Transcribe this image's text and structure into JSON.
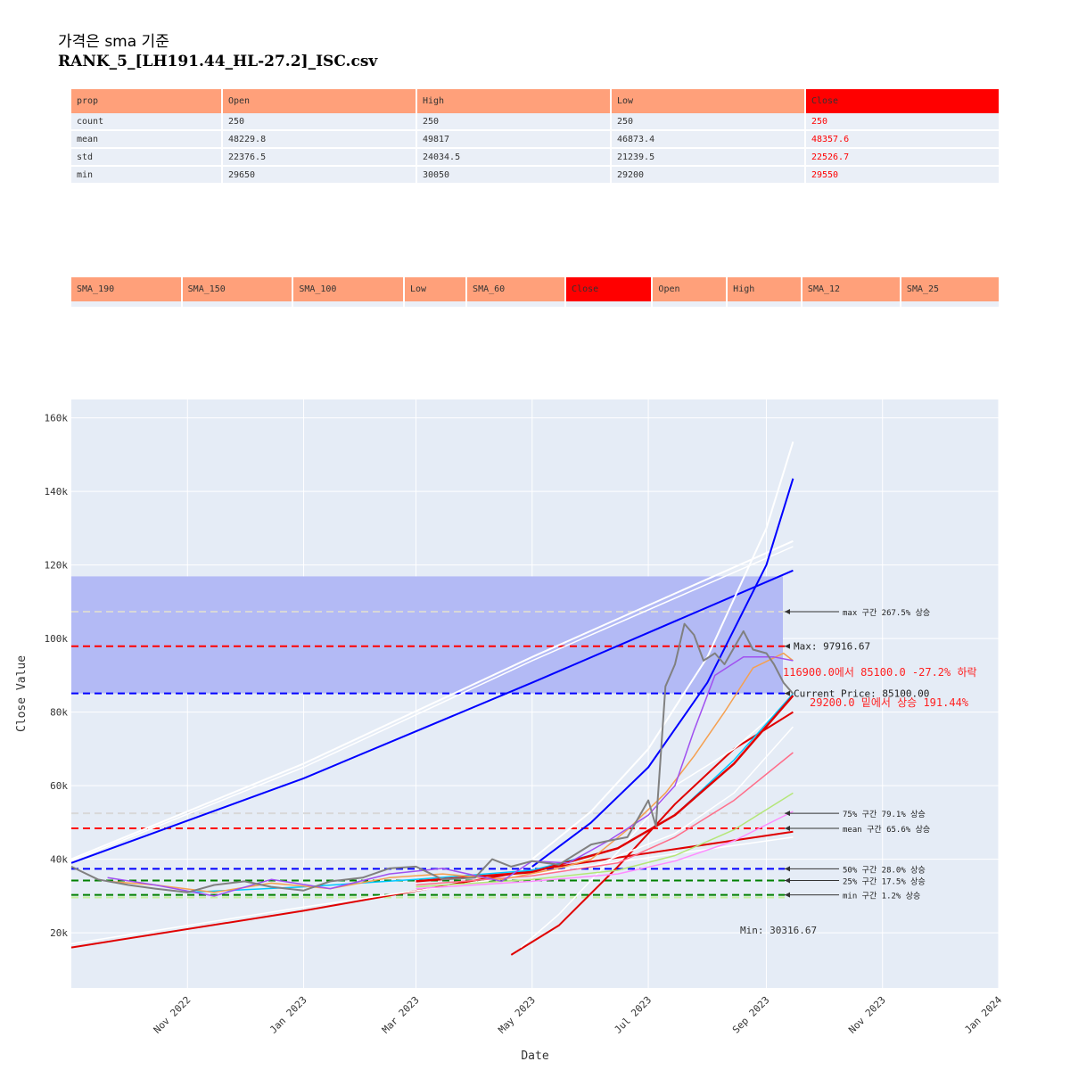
{
  "title": {
    "line1": "가격은 sma 기준",
    "line2": "RANK_5_[LH191.44_HL-27.2]_ISC.csv"
  },
  "stats_table": {
    "headers": [
      "prop",
      "Open",
      "High",
      "Low",
      "Close"
    ],
    "rows": [
      [
        "count",
        "250",
        "250",
        "250",
        "250"
      ],
      [
        "mean",
        "48229.8",
        "49817",
        "46873.4",
        "48357.6"
      ],
      [
        "std",
        "22376.5",
        "24034.5",
        "21239.5",
        "22526.7"
      ],
      [
        "min",
        "29650",
        "30050",
        "29200",
        "29550"
      ]
    ]
  },
  "sma_table": {
    "headers": [
      "SMA_190",
      "SMA_150",
      "SMA_100",
      "Low",
      "SMA_60",
      "Close",
      "Open",
      "High",
      "SMA_12",
      "SMA_25"
    ]
  },
  "colors": {
    "header": "#ffa07a",
    "close_header": "#ff0000",
    "plot_bg": "#e5ecf6",
    "band": "#b3baf5"
  },
  "chart_data": {
    "type": "line",
    "xlabel": "Date",
    "ylabel": "Close Value",
    "x_range": [
      "2022-09-01",
      "2024-01-01"
    ],
    "ylim": [
      5000,
      165000
    ],
    "x_ticks": [
      "Nov 2022",
      "Jan 2023",
      "Mar 2023",
      "May 2023",
      "Jul 2023",
      "Sep 2023",
      "Nov 2023",
      "Jan 2024"
    ],
    "y_ticks": [
      "20k",
      "40k",
      "60k",
      "80k",
      "100k",
      "120k",
      "140k",
      "160k"
    ],
    "y_tick_values": [
      20000,
      40000,
      60000,
      80000,
      100000,
      120000,
      140000,
      160000
    ],
    "band": [
      85100,
      116900
    ],
    "hlines": [
      {
        "y": 107300,
        "color": "#d8d8d8"
      },
      {
        "y": 97916.67,
        "color": "#ff0000"
      },
      {
        "y": 85100,
        "color": "#0000ff"
      },
      {
        "y": 52500,
        "color": "#d8d8d8"
      },
      {
        "y": 48400,
        "color": "#ff0000"
      },
      {
        "y": 37400,
        "color": "#0000ff"
      },
      {
        "y": 34200,
        "color": "#008000"
      },
      {
        "y": 30300,
        "color": "#008000"
      },
      {
        "y": 29600,
        "color": "#c8f0a0"
      }
    ],
    "annotations": [
      {
        "text": "max 구간 267.5% 상승",
        "y": 107300
      },
      {
        "text": "Max: 97916.67",
        "y": 97916.67
      },
      {
        "text": "Current Price: 85100.00",
        "y": 85100
      },
      {
        "text": "75% 구간 79.1% 상승",
        "y": 52500
      },
      {
        "text": "mean 구간 65.6% 상승",
        "y": 48400
      },
      {
        "text": "50% 구간 28.0% 상승",
        "y": 37400
      },
      {
        "text": "25% 구간 17.5% 상승",
        "y": 34200
      },
      {
        "text": "min 구간 1.2% 상승",
        "y": 30300
      }
    ],
    "red_notes": [
      "116900.0에서 85100.0 -27.2% 하락",
      "29200.0 밑에서 상승 191.44%"
    ],
    "min_label": "Min: 30316.67",
    "series": [
      {
        "color": "#0000ff",
        "width": 2,
        "x": [
          "2022-09-01",
          "2023-01-01",
          "2023-05-01",
          "2023-09-15"
        ],
        "y": [
          39000,
          62000,
          88000,
          118500
        ]
      },
      {
        "color": "#ffffff",
        "width": 2,
        "x": [
          "2022-09-01",
          "2023-01-01",
          "2023-05-01",
          "2023-09-15"
        ],
        "y": [
          40000,
          66000,
          95000,
          126500
        ]
      },
      {
        "color": "#ffffff",
        "width": 1.5,
        "x": [
          "2022-09-01",
          "2023-01-01",
          "2023-05-01",
          "2023-09-15"
        ],
        "y": [
          39500,
          65000,
          94000,
          125000
        ]
      },
      {
        "color": "#e00000",
        "width": 2,
        "x": [
          "2022-09-01",
          "2023-01-01",
          "2023-05-01",
          "2023-09-15"
        ],
        "y": [
          16000,
          26000,
          37000,
          47500
        ]
      },
      {
        "color": "#ffffff",
        "width": 1.5,
        "x": [
          "2022-09-01",
          "2023-01-01",
          "2023-05-01",
          "2023-09-15"
        ],
        "y": [
          17000,
          27000,
          36000,
          46000
        ]
      },
      {
        "color": "#0000ff",
        "width": 2,
        "x": [
          "2023-05-01",
          "2023-06-01",
          "2023-07-01",
          "2023-08-01",
          "2023-09-01",
          "2023-09-15"
        ],
        "y": [
          38000,
          50000,
          65000,
          88000,
          120000,
          143500
        ]
      },
      {
        "color": "#ffffff",
        "width": 2,
        "x": [
          "2023-05-01",
          "2023-06-01",
          "2023-07-01",
          "2023-08-01",
          "2023-09-01",
          "2023-09-15"
        ],
        "y": [
          40000,
          53000,
          70000,
          95000,
          130000,
          153500
        ]
      },
      {
        "color": "#e00000",
        "width": 2,
        "x": [
          "2023-04-20",
          "2023-05-15",
          "2023-06-15",
          "2023-07-15",
          "2023-08-15",
          "2023-09-15"
        ],
        "y": [
          14000,
          22000,
          38000,
          55000,
          70000,
          80000
        ]
      },
      {
        "color": "#ffffff",
        "width": 1.5,
        "x": [
          "2023-04-25",
          "2023-05-15",
          "2023-06-15",
          "2023-07-15",
          "2023-08-15",
          "2023-09-15"
        ],
        "y": [
          16000,
          25000,
          42000,
          60000,
          70000,
          84000
        ]
      },
      {
        "color": "#ffffff",
        "width": 1.5,
        "x": [
          "2023-06-01",
          "2023-07-15",
          "2023-08-15",
          "2023-09-15"
        ],
        "y": [
          38000,
          47000,
          58000,
          76000
        ]
      },
      {
        "color": "#00c8ff",
        "width": 1.5,
        "x": [
          "2022-11-01",
          "2023-01-01",
          "2023-03-01",
          "2023-05-01",
          "2023-06-15",
          "2023-07-15",
          "2023-08-15",
          "2023-09-15"
        ],
        "y": [
          31000,
          32500,
          34500,
          37000,
          43000,
          52000,
          67000,
          85000
        ]
      },
      {
        "color": "#e00000",
        "width": 2.5,
        "x": [
          "2023-03-01",
          "2023-05-01",
          "2023-06-15",
          "2023-07-15",
          "2023-08-15",
          "2023-09-15"
        ],
        "y": [
          34000,
          36500,
          43000,
          52000,
          66000,
          84500
        ]
      },
      {
        "color": "#ff6e8a",
        "width": 1.5,
        "x": [
          "2023-03-01",
          "2023-05-01",
          "2023-06-15",
          "2023-07-15",
          "2023-08-15",
          "2023-09-15"
        ],
        "y": [
          33000,
          35500,
          39000,
          46000,
          56000,
          69000
        ]
      },
      {
        "color": "#b4e678",
        "width": 1.5,
        "x": [
          "2023-03-01",
          "2023-05-01",
          "2023-06-15",
          "2023-07-15",
          "2023-08-15",
          "2023-09-15"
        ],
        "y": [
          32500,
          34500,
          37000,
          41000,
          48000,
          58000
        ]
      },
      {
        "color": "#ff8cff",
        "width": 1.5,
        "x": [
          "2023-03-01",
          "2023-05-01",
          "2023-06-15",
          "2023-07-15",
          "2023-08-15",
          "2023-09-15"
        ],
        "y": [
          32000,
          34000,
          36000,
          39500,
          45000,
          53000
        ]
      },
      {
        "color": "#f5a050",
        "width": 1.5,
        "x": [
          "2022-09-20",
          "2022-10-15",
          "2022-11-15",
          "2022-12-15",
          "2023-01-15",
          "2023-02-15",
          "2023-03-15",
          "2023-04-15",
          "2023-05-15",
          "2023-06-01",
          "2023-06-20",
          "2023-07-10",
          "2023-07-25",
          "2023-08-10",
          "2023-08-25",
          "2023-09-10",
          "2023-09-15"
        ],
        "y": [
          34000,
          33000,
          31000,
          33500,
          32000,
          35000,
          36000,
          34500,
          37500,
          40000,
          48000,
          58000,
          68000,
          80000,
          92000,
          96000,
          94000
        ]
      },
      {
        "color": "#a050f0",
        "width": 1.5,
        "x": [
          "2022-09-20",
          "2022-10-15",
          "2022-11-15",
          "2022-12-15",
          "2023-01-15",
          "2023-02-15",
          "2023-03-15",
          "2023-04-15",
          "2023-05-01",
          "2023-05-20",
          "2023-06-10",
          "2023-07-01",
          "2023-07-15",
          "2023-07-25",
          "2023-08-05",
          "2023-08-20",
          "2023-09-05",
          "2023-09-15"
        ],
        "y": [
          35000,
          33000,
          30000,
          34500,
          32000,
          36000,
          37500,
          34000,
          39500,
          39000,
          45000,
          52000,
          60000,
          75000,
          90000,
          95000,
          95000,
          94000
        ]
      },
      {
        "color": "#808080",
        "width": 2,
        "x": [
          "2022-09-01",
          "2022-09-15",
          "2022-10-01",
          "2022-10-15",
          "2022-11-01",
          "2022-11-15",
          "2022-12-01",
          "2022-12-15",
          "2023-01-01",
          "2023-01-15",
          "2023-02-01",
          "2023-02-15",
          "2023-03-01",
          "2023-03-15",
          "2023-04-01",
          "2023-04-10",
          "2023-04-20",
          "2023-05-01",
          "2023-05-15",
          "2023-06-01",
          "2023-06-10",
          "2023-06-20",
          "2023-07-01",
          "2023-07-05",
          "2023-07-10",
          "2023-07-15",
          "2023-07-20",
          "2023-07-25",
          "2023-07-30",
          "2023-08-05",
          "2023-08-10",
          "2023-08-20",
          "2023-08-25",
          "2023-09-01",
          "2023-09-05",
          "2023-09-10",
          "2023-09-15"
        ],
        "y": [
          38000,
          34500,
          33000,
          32000,
          31000,
          33000,
          34000,
          32500,
          31500,
          34000,
          35000,
          37500,
          38000,
          34500,
          35000,
          40000,
          38000,
          39500,
          38500,
          44000,
          45000,
          46000,
          56000,
          49000,
          87000,
          93000,
          104000,
          101000,
          94000,
          96000,
          93000,
          102000,
          97000,
          96000,
          93000,
          88000,
          85000
        ]
      }
    ]
  }
}
